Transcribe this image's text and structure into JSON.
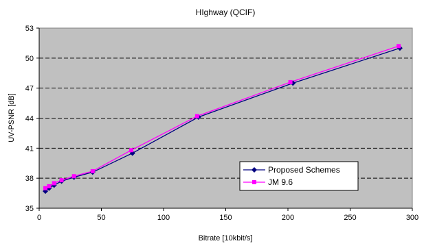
{
  "chart_data": {
    "type": "line",
    "title": "HIghway (QCIF)",
    "xlabel": "Bitrate [10kbit/s]",
    "ylabel": "UV-PSNR [dB]",
    "xlim": [
      0,
      300
    ],
    "ylim": [
      35,
      53
    ],
    "x_ticks": [
      0,
      50,
      100,
      150,
      200,
      250,
      300
    ],
    "y_ticks": [
      35,
      38,
      41,
      44,
      47,
      50,
      53
    ],
    "grid": "horizontal dashed",
    "plot_background": "#c0c0c0",
    "legend_position": "lower-right",
    "series": [
      {
        "name": "Proposed Schemes",
        "color": "#000080",
        "marker": "diamond",
        "x": [
          5,
          8,
          12,
          18,
          28,
          43,
          75,
          128,
          204,
          290
        ],
        "y": [
          36.7,
          37.0,
          37.3,
          37.7,
          38.1,
          38.6,
          40.5,
          44.1,
          47.5,
          51.0
        ]
      },
      {
        "name": "JM 9.6",
        "color": "#ff00ff",
        "marker": "square",
        "x": [
          5,
          8,
          12,
          18,
          28,
          43,
          74,
          127,
          202,
          289
        ],
        "y": [
          37.0,
          37.2,
          37.5,
          37.8,
          38.2,
          38.7,
          40.8,
          44.2,
          47.6,
          51.2
        ]
      }
    ]
  }
}
